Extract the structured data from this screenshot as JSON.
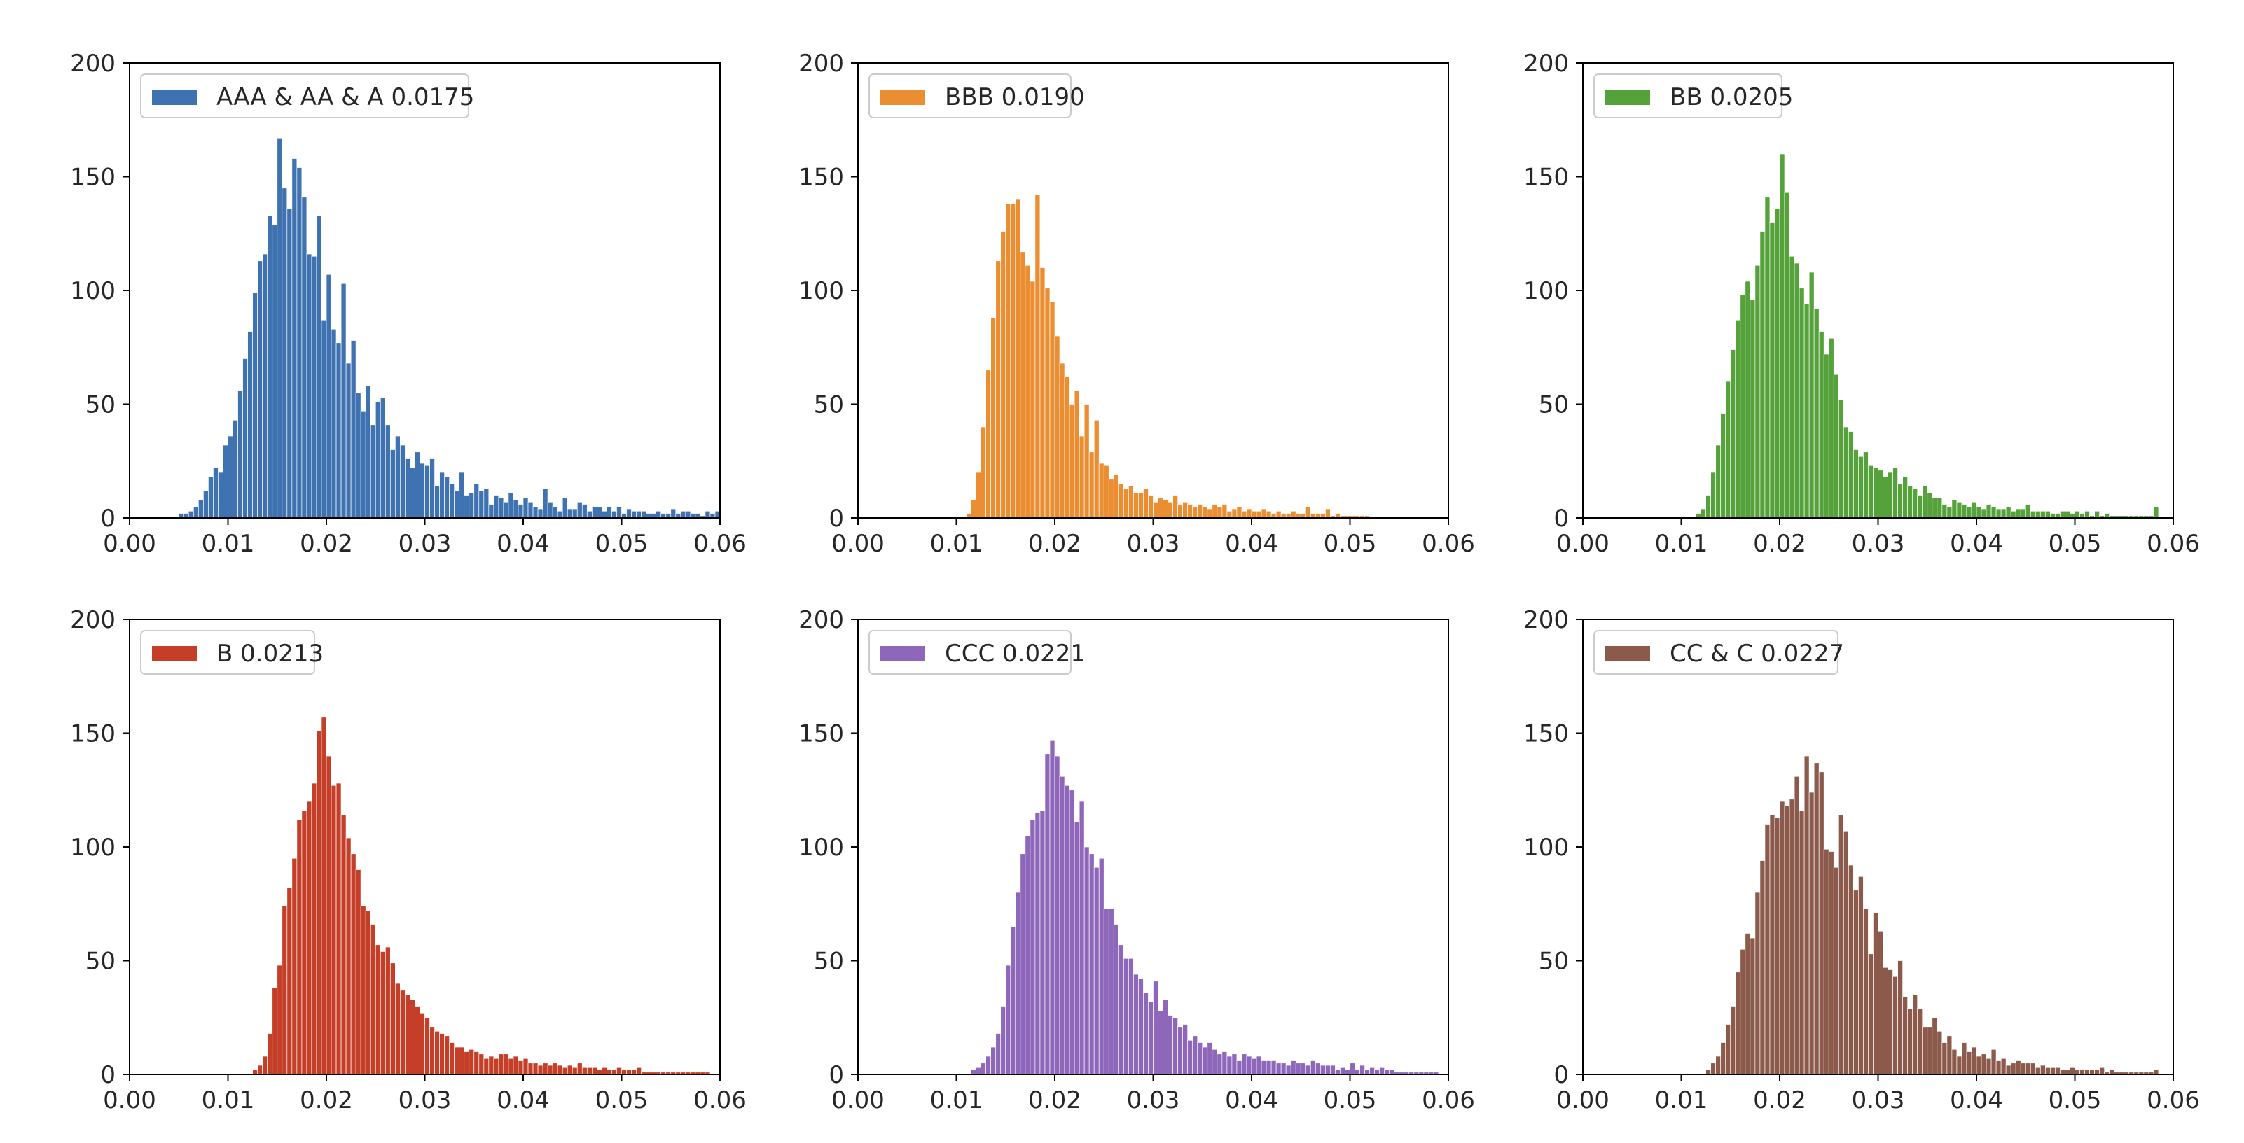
{
  "chart_data": [
    {
      "type": "bar",
      "legend": "AAA & AA & A 0.0175",
      "color": "#3f72b1",
      "xlim": [
        0,
        0.06
      ],
      "ylim": [
        0,
        200
      ],
      "xticks": [
        "0.00",
        "0.01",
        "0.02",
        "0.03",
        "0.04",
        "0.05",
        "0.06"
      ],
      "yticks": [
        "0",
        "50",
        "100",
        "150",
        "200"
      ],
      "bins": {
        "start": 0.005,
        "width": 0.0005
      },
      "values": [
        2,
        2,
        3,
        5,
        8,
        12,
        18,
        22,
        20,
        32,
        36,
        43,
        56,
        70,
        82,
        99,
        113,
        116,
        133,
        129,
        167,
        145,
        136,
        158,
        154,
        141,
        116,
        115,
        133,
        87,
        107,
        83,
        77,
        103,
        68,
        78,
        55,
        47,
        58,
        41,
        51,
        53,
        41,
        30,
        36,
        32,
        26,
        22,
        29,
        24,
        23,
        26,
        14,
        20,
        18,
        15,
        12,
        20,
        10,
        11,
        15,
        12,
        13,
        6,
        10,
        9,
        7,
        11,
        8,
        6,
        9,
        7,
        5,
        4,
        13,
        7,
        5,
        3,
        9,
        4,
        4,
        7,
        6,
        3,
        5,
        5,
        3,
        5,
        3,
        5,
        2,
        4,
        3,
        3,
        3,
        2,
        2,
        3,
        2,
        2,
        4,
        2,
        3,
        3,
        2,
        2,
        1,
        3,
        2,
        3
      ]
    },
    {
      "type": "bar",
      "legend": "BBB 0.0190",
      "color": "#eb8e32",
      "xlim": [
        0,
        0.06
      ],
      "ylim": [
        0,
        200
      ],
      "xticks": [
        "0.00",
        "0.01",
        "0.02",
        "0.03",
        "0.04",
        "0.05",
        "0.06"
      ],
      "yticks": [
        "0",
        "50",
        "100",
        "150",
        "200"
      ],
      "bins": {
        "start": 0.011,
        "width": 0.0005
      },
      "values": [
        2,
        8,
        20,
        40,
        65,
        88,
        113,
        126,
        138,
        138,
        140,
        117,
        111,
        104,
        142,
        110,
        101,
        95,
        80,
        68,
        62,
        50,
        56,
        36,
        50,
        29,
        43,
        24,
        23,
        17,
        19,
        15,
        13,
        14,
        11,
        11,
        13,
        10,
        7,
        9,
        8,
        7,
        10,
        6,
        7,
        6,
        5,
        6,
        5,
        4,
        6,
        5,
        6,
        3,
        4,
        5,
        3,
        4,
        3,
        3,
        4,
        3,
        2,
        3,
        2,
        2,
        3,
        2,
        2,
        5,
        2,
        2,
        2,
        4,
        1,
        2,
        1,
        1,
        1,
        1,
        1,
        1
      ]
    },
    {
      "type": "bar",
      "legend": "BB 0.0205",
      "color": "#55a13a",
      "xlim": [
        0,
        0.06
      ],
      "ylim": [
        0,
        200
      ],
      "xticks": [
        "0.00",
        "0.01",
        "0.02",
        "0.03",
        "0.04",
        "0.05",
        "0.06"
      ],
      "yticks": [
        "0",
        "50",
        "100",
        "150",
        "200"
      ],
      "bins": {
        "start": 0.0115,
        "width": 0.0005
      },
      "values": [
        2,
        4,
        10,
        20,
        32,
        46,
        60,
        74,
        87,
        98,
        104,
        96,
        111,
        126,
        141,
        130,
        136,
        160,
        143,
        115,
        112,
        101,
        94,
        108,
        92,
        82,
        72,
        79,
        63,
        52,
        40,
        38,
        30,
        27,
        29,
        23,
        22,
        21,
        18,
        20,
        22,
        15,
        18,
        14,
        13,
        10,
        14,
        11,
        9,
        9,
        6,
        5,
        8,
        7,
        6,
        5,
        7,
        5,
        4,
        6,
        5,
        4,
        4,
        5,
        3,
        4,
        4,
        6,
        3,
        3,
        3,
        3,
        2,
        2,
        3,
        3,
        2,
        3,
        2,
        3,
        1,
        3,
        1,
        2,
        1,
        1,
        1,
        1,
        1,
        1,
        1,
        1,
        1,
        5
      ]
    },
    {
      "type": "bar",
      "legend": "B 0.0213",
      "color": "#c53f28",
      "xlim": [
        0,
        0.06
      ],
      "ylim": [
        0,
        200
      ],
      "xticks": [
        "0.00",
        "0.01",
        "0.02",
        "0.03",
        "0.04",
        "0.05",
        "0.06"
      ],
      "yticks": [
        "0",
        "50",
        "100",
        "150",
        "200"
      ],
      "bins": {
        "start": 0.0125,
        "width": 0.0005
      },
      "values": [
        2,
        4,
        8,
        18,
        38,
        48,
        74,
        82,
        95,
        112,
        116,
        120,
        128,
        151,
        157,
        140,
        127,
        128,
        114,
        104,
        97,
        90,
        74,
        72,
        66,
        57,
        54,
        56,
        49,
        40,
        37,
        35,
        33,
        30,
        27,
        25,
        21,
        19,
        18,
        17,
        14,
        12,
        12,
        10,
        11,
        10,
        9,
        7,
        8,
        7,
        9,
        9,
        7,
        8,
        6,
        7,
        5,
        5,
        4,
        5,
        4,
        5,
        4,
        3,
        4,
        3,
        5,
        3,
        3,
        3,
        2,
        3,
        2,
        2,
        3,
        2,
        2,
        2,
        3,
        1,
        1,
        1,
        1,
        1,
        1,
        1,
        1,
        1,
        1,
        1,
        1,
        1,
        1
      ]
    },
    {
      "type": "bar",
      "legend": "CCC 0.0221",
      "color": "#8e66ba",
      "xlim": [
        0,
        0.06
      ],
      "ylim": [
        0,
        200
      ],
      "xticks": [
        "0.00",
        "0.01",
        "0.02",
        "0.03",
        "0.04",
        "0.05",
        "0.06"
      ],
      "yticks": [
        "0",
        "50",
        "100",
        "150",
        "200"
      ],
      "bins": {
        "start": 0.0115,
        "width": 0.0005
      },
      "values": [
        2,
        3,
        5,
        8,
        12,
        18,
        30,
        48,
        65,
        80,
        97,
        105,
        112,
        115,
        116,
        141,
        147,
        140,
        131,
        127,
        125,
        111,
        120,
        100,
        97,
        91,
        95,
        73,
        73,
        66,
        57,
        51,
        51,
        44,
        42,
        36,
        32,
        41,
        28,
        33,
        26,
        25,
        21,
        22,
        15,
        17,
        14,
        12,
        14,
        11,
        9,
        10,
        8,
        9,
        6,
        9,
        8,
        7,
        8,
        6,
        6,
        6,
        5,
        5,
        4,
        6,
        5,
        5,
        4,
        6,
        5,
        4,
        4,
        4,
        2,
        3,
        2,
        5,
        2,
        4,
        2,
        3,
        2,
        3,
        2,
        2,
        1,
        1,
        1,
        1,
        1,
        1,
        1,
        1,
        1
      ]
    },
    {
      "type": "bar",
      "legend": "CC & C 0.0227",
      "color": "#8b5a4b",
      "xlim": [
        0,
        0.06
      ],
      "ylim": [
        0,
        200
      ],
      "xticks": [
        "0.00",
        "0.01",
        "0.02",
        "0.03",
        "0.04",
        "0.05",
        "0.06"
      ],
      "yticks": [
        "0",
        "50",
        "100",
        "150",
        "200"
      ],
      "bins": {
        "start": 0.0125,
        "width": 0.0005
      },
      "values": [
        2,
        5,
        8,
        14,
        22,
        30,
        45,
        55,
        62,
        60,
        80,
        94,
        110,
        114,
        113,
        120,
        118,
        121,
        131,
        116,
        140,
        124,
        137,
        133,
        99,
        98,
        91,
        114,
        107,
        92,
        81,
        87,
        73,
        53,
        71,
        63,
        47,
        46,
        43,
        50,
        34,
        29,
        35,
        29,
        21,
        21,
        25,
        19,
        14,
        17,
        11,
        8,
        14,
        10,
        12,
        8,
        9,
        7,
        11,
        6,
        7,
        4,
        5,
        6,
        5,
        5,
        5,
        3,
        4,
        3,
        3,
        3,
        2,
        2,
        3,
        2,
        2,
        2,
        2,
        2,
        3,
        1,
        2,
        1,
        1,
        1,
        1,
        1,
        1,
        1,
        1,
        2
      ]
    }
  ]
}
